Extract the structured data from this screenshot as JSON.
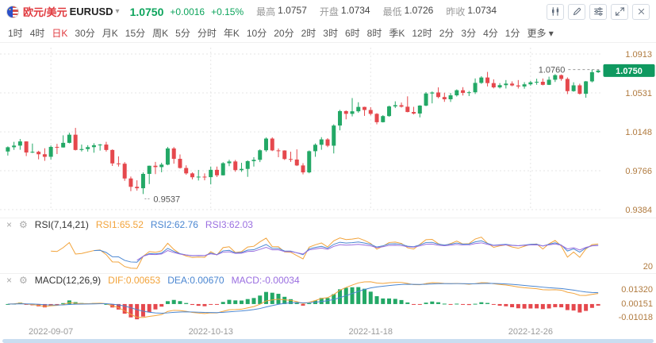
{
  "header": {
    "pair_cn": "欧元/美元",
    "pair_code": "EURUSD",
    "price": "1.0750",
    "change": "+0.0016",
    "change_pct": "+0.15%",
    "stats": [
      {
        "label": "最高",
        "value": "1.0757"
      },
      {
        "label": "开盘",
        "value": "1.0734"
      },
      {
        "label": "最低",
        "value": "1.0726"
      },
      {
        "label": "昨收",
        "value": "1.0734"
      }
    ]
  },
  "toolbar": {
    "timeframes": [
      "1时",
      "4时",
      "日K",
      "30分",
      "月K",
      "15分",
      "周K",
      "5分",
      "分时",
      "年K",
      "10分",
      "20分",
      "2时",
      "3时",
      "6时",
      "8时",
      "季K",
      "12时",
      "2分",
      "3分",
      "4分",
      "1分"
    ],
    "active": "日K",
    "more_label": "更多"
  },
  "ui": {
    "caret": "▾",
    "close_icon": "×",
    "gear_icon": "⚙"
  },
  "colors": {
    "up": "#23a866",
    "down": "#e5484d",
    "axis_text": "#b07a3e",
    "badge_bg": "#0f9960",
    "grid": "#e6e6e6",
    "rsi1": "#f2a33a",
    "rsi2": "#4a86d1",
    "rsi3": "#9a6ee0",
    "active_tab": "#e0393e",
    "price_up": "#0da45c",
    "scrollbar": "#c9ddf0"
  },
  "rsi_panel": {
    "title": "RSI(7,14,21)",
    "rsi1": "RSI1:65.52",
    "rsi2": "RSI2:62.76",
    "rsi3": "RSI3:62.03",
    "params": [
      7,
      14,
      21
    ],
    "axis_bottom": "20"
  },
  "macd_panel": {
    "title": "MACD(12,26,9)",
    "dif": "DIF:0.00653",
    "dea": "DEA:0.00670",
    "macd": "MACD:-0.00034",
    "params": [
      12,
      26,
      9
    ],
    "axis_labels": [
      "0.01320",
      "0.00151",
      "-0.01018"
    ]
  },
  "chart_data": {
    "type": "candlestick",
    "symbol": "EURUSD",
    "interval": "1D",
    "y_ticks": [
      1.0913,
      1.0531,
      1.0148,
      0.9766,
      0.9384
    ],
    "x_ticks": [
      {
        "index": 7,
        "label": "2022-09-07"
      },
      {
        "index": 33,
        "label": "2022-10-13"
      },
      {
        "index": 59,
        "label": "2022-11-18"
      },
      {
        "index": 85,
        "label": "2022-12-26"
      }
    ],
    "annotations": {
      "max": {
        "index": 95,
        "price": 1.076,
        "label": "1.0760"
      },
      "min": {
        "index": 22,
        "price": 0.9537,
        "label": "0.9537"
      }
    },
    "current_price": "1.0750",
    "candles": [
      [
        0.9955,
        1.0005,
        0.9915,
        0.9997
      ],
      [
        0.9997,
        1.005,
        0.9971,
        1.0013
      ],
      [
        1.0013,
        1.0078,
        0.9972,
        1.0054
      ],
      [
        1.0054,
        1.0055,
        0.991,
        0.9945
      ],
      [
        0.9945,
        1.0033,
        0.994,
        0.9952
      ],
      [
        0.9952,
        0.9962,
        0.9878,
        0.9928
      ],
      [
        0.9928,
        0.9987,
        0.9863,
        0.9903
      ],
      [
        0.9903,
        1.0014,
        0.9876,
        1.0
      ],
      [
        1.0,
        1.003,
        0.993,
        0.9995
      ],
      [
        0.9995,
        1.0114,
        0.9993,
        1.004
      ],
      [
        1.004,
        1.0139,
        1.0035,
        1.012
      ],
      [
        1.012,
        1.0187,
        0.9965,
        0.997
      ],
      [
        0.997,
        1.0023,
        0.9955,
        0.9979
      ],
      [
        0.9979,
        1.0017,
        0.9954,
        0.9998
      ],
      [
        0.9998,
        1.0036,
        0.9943,
        1.0016
      ],
      [
        1.0016,
        1.0029,
        0.9964,
        1.0023
      ],
      [
        1.0023,
        1.005,
        0.9954,
        0.997
      ],
      [
        0.997,
        0.9976,
        0.9813,
        0.9838
      ],
      [
        0.9838,
        0.9907,
        0.9807,
        0.9835
      ],
      [
        0.9835,
        0.9851,
        0.9667,
        0.969
      ],
      [
        0.969,
        0.9709,
        0.9565,
        0.9608
      ],
      [
        0.9608,
        0.9672,
        0.957,
        0.9594
      ],
      [
        0.9594,
        0.975,
        0.9537,
        0.9735
      ],
      [
        0.9735,
        0.9816,
        0.9635,
        0.9815
      ],
      [
        0.9815,
        0.9853,
        0.9733,
        0.9802
      ],
      [
        0.9802,
        0.9844,
        0.9751,
        0.9826
      ],
      [
        0.9826,
        1.0,
        0.982,
        0.9985
      ],
      [
        0.9985,
        0.9999,
        0.9835,
        0.9883
      ],
      [
        0.9883,
        0.9926,
        0.9787,
        0.9793
      ],
      [
        0.9793,
        0.9819,
        0.9726,
        0.974
      ],
      [
        0.974,
        0.975,
        0.9681,
        0.9702
      ],
      [
        0.9702,
        0.9774,
        0.967,
        0.9708
      ],
      [
        0.9708,
        0.974,
        0.9672,
        0.9703
      ],
      [
        0.9703,
        0.9807,
        0.9632,
        0.9775
      ],
      [
        0.9775,
        0.9807,
        0.9704,
        0.9721
      ],
      [
        0.9721,
        0.985,
        0.9719,
        0.984
      ],
      [
        0.984,
        0.9874,
        0.9811,
        0.9857
      ],
      [
        0.9857,
        0.9872,
        0.9756,
        0.9772
      ],
      [
        0.9772,
        0.9844,
        0.9755,
        0.9784
      ],
      [
        0.9784,
        0.9868,
        0.9706,
        0.986
      ],
      [
        0.986,
        0.9899,
        0.9807,
        0.9873
      ],
      [
        0.9873,
        0.9976,
        0.9851,
        0.9967
      ],
      [
        0.9967,
        1.0093,
        0.9952,
        1.0082
      ],
      [
        1.0082,
        1.0094,
        0.9959,
        0.9966
      ],
      [
        0.9966,
        0.9985,
        0.9899,
        0.9965
      ],
      [
        0.9965,
        0.9967,
        0.9872,
        0.9881
      ],
      [
        0.9881,
        0.9953,
        0.9853,
        0.9876
      ],
      [
        0.9876,
        0.9976,
        0.9812,
        0.9818
      ],
      [
        0.9818,
        0.984,
        0.973,
        0.975
      ],
      [
        0.975,
        0.9965,
        0.9741,
        0.9958
      ],
      [
        0.9958,
        1.0034,
        0.9903,
        1.0021
      ],
      [
        1.0021,
        1.0096,
        0.9972,
        1.0074
      ],
      [
        1.0074,
        1.0086,
        0.9998,
        1.0012
      ],
      [
        1.0012,
        1.0222,
        0.9936,
        1.021
      ],
      [
        1.021,
        1.0364,
        1.0163,
        1.0352
      ],
      [
        1.0352,
        1.0358,
        1.0271,
        1.0325
      ],
      [
        1.0325,
        1.048,
        1.03,
        1.035
      ],
      [
        1.035,
        1.0439,
        1.0336,
        1.0393
      ],
      [
        1.0393,
        1.0395,
        1.0305,
        1.0363
      ],
      [
        1.0363,
        1.039,
        1.031,
        1.0325
      ],
      [
        1.0325,
        1.0332,
        1.0222,
        1.0243
      ],
      [
        1.0243,
        1.0312,
        1.024,
        1.0303
      ],
      [
        1.0303,
        1.0405,
        1.0296,
        1.0398
      ],
      [
        1.0398,
        1.0448,
        1.0382,
        1.041
      ],
      [
        1.041,
        1.0436,
        1.0387,
        1.0395
      ],
      [
        1.0395,
        1.0497,
        1.034,
        1.0343
      ],
      [
        1.0343,
        1.0394,
        1.0319,
        1.0328
      ],
      [
        1.0328,
        1.041,
        1.029,
        1.0406
      ],
      [
        1.0406,
        1.0539,
        1.04,
        1.0525
      ],
      [
        1.0525,
        1.0545,
        1.0428,
        1.0535
      ],
      [
        1.0535,
        1.0585,
        1.0478,
        1.049
      ],
      [
        1.049,
        1.0533,
        1.0443,
        1.0468
      ],
      [
        1.0468,
        1.053,
        1.0442,
        1.0507
      ],
      [
        1.0507,
        1.0565,
        1.0495,
        1.0557
      ],
      [
        1.0557,
        1.0587,
        1.0505,
        1.0531
      ],
      [
        1.0531,
        1.055,
        1.05,
        1.0537
      ],
      [
        1.0537,
        1.0673,
        1.052,
        1.0629
      ],
      [
        1.0629,
        1.0695,
        1.062,
        1.0682
      ],
      [
        1.0682,
        1.0737,
        1.0594,
        1.0627
      ],
      [
        1.0627,
        1.0664,
        1.0575,
        1.0585
      ],
      [
        1.0585,
        1.0627,
        1.0574,
        1.0607
      ],
      [
        1.0607,
        1.0657,
        1.0574,
        1.0622
      ],
      [
        1.0622,
        1.0644,
        1.0596,
        1.0604
      ],
      [
        1.0604,
        1.0657,
        1.0574,
        1.0594
      ],
      [
        1.0594,
        1.0636,
        1.0572,
        1.0615
      ],
      [
        1.0615,
        1.0648,
        1.0602,
        1.0635
      ],
      [
        1.0635,
        1.067,
        1.0611,
        1.064
      ],
      [
        1.064,
        1.0672,
        1.0605,
        1.061
      ],
      [
        1.061,
        1.069,
        1.0608,
        1.066
      ],
      [
        1.066,
        1.0715,
        1.0638,
        1.0705
      ],
      [
        1.0705,
        1.0712,
        1.065,
        1.0668
      ],
      [
        1.0668,
        1.0683,
        1.0519,
        1.0548
      ],
      [
        1.0548,
        1.0635,
        1.0542,
        1.0605
      ],
      [
        1.0605,
        1.0621,
        1.0515,
        1.0522
      ],
      [
        1.0522,
        1.0648,
        1.0483,
        1.0644
      ],
      [
        1.0644,
        1.076,
        1.0634,
        1.0734
      ],
      [
        1.0734,
        1.0757,
        1.0726,
        1.075
      ]
    ]
  }
}
